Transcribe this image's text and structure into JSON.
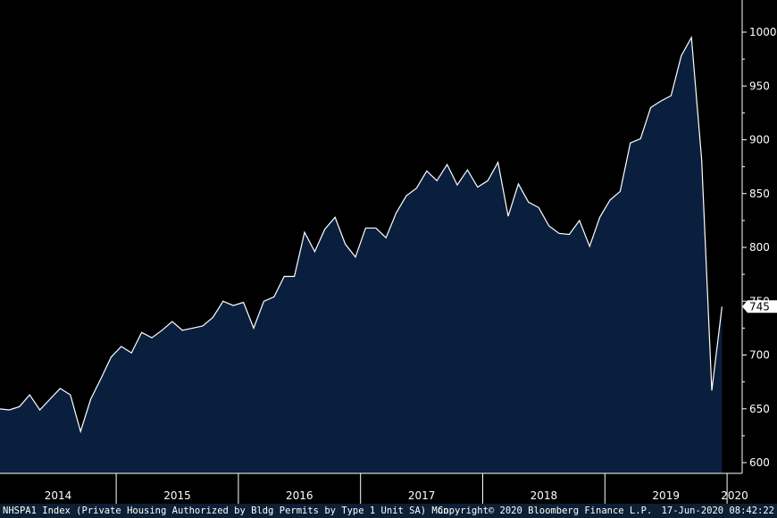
{
  "chart_data": {
    "type": "area",
    "series": [
      {
        "values": [
          650,
          649,
          652,
          663,
          649,
          659,
          669,
          663,
          629,
          659,
          678,
          698,
          708,
          702,
          721,
          716,
          723,
          731,
          723,
          725,
          727,
          735,
          750,
          746,
          749,
          725,
          750,
          754,
          773,
          773,
          814,
          796,
          817,
          828,
          803,
          791,
          818,
          818,
          809,
          832,
          848,
          855,
          871,
          862,
          877,
          858,
          872,
          856,
          862,
          879,
          829,
          859,
          842,
          837,
          820,
          813,
          812,
          825,
          801,
          828,
          844,
          852,
          897,
          901,
          930,
          936,
          941,
          978,
          995,
          882,
          667,
          745
        ]
      }
    ],
    "x_start": "2014-01",
    "frequency": "monthly",
    "x_year_labels": [
      "2014",
      "2015",
      "2016",
      "2017",
      "2018",
      "2019",
      "2020"
    ],
    "y_ticks": [
      600,
      650,
      700,
      750,
      800,
      850,
      900,
      950,
      1000
    ],
    "ylim": [
      590,
      1030
    ],
    "last_value_label": "745",
    "colors": {
      "fill": "#0a1f3d",
      "line": "#ffffff",
      "background": "#000000"
    }
  },
  "footer": {
    "left": "NHSPA1 Index (Private Housing Authorized by Bldg Permits by Type 1 Unit SA)  Mon",
    "center": "Copyright© 2020 Bloomberg Finance L.P.",
    "right": "17-Jun-2020 08:42:22"
  }
}
